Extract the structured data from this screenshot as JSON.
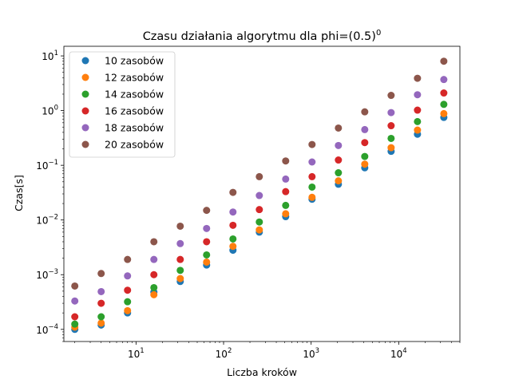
{
  "chart_data": {
    "type": "scatter",
    "title": "Czasu działania algorytmu dla phi=(0.5)",
    "title_superscript": "0",
    "xlabel": "Liczba kroków",
    "ylabel": "Czas[s]",
    "x_scale": "log",
    "y_scale": "log",
    "xlim": [
      1.5,
      50000
    ],
    "ylim": [
      6e-05,
      15
    ],
    "x_ticks": [
      {
        "value": 10,
        "base": "10",
        "exp": "1"
      },
      {
        "value": 100,
        "base": "10",
        "exp": "2"
      },
      {
        "value": 1000,
        "base": "10",
        "exp": "3"
      },
      {
        "value": 10000,
        "base": "10",
        "exp": "4"
      }
    ],
    "y_ticks": [
      {
        "value": 0.0001,
        "base": "10",
        "exp": "−4"
      },
      {
        "value": 0.001,
        "base": "10",
        "exp": "−3"
      },
      {
        "value": 0.01,
        "base": "10",
        "exp": "−2"
      },
      {
        "value": 0.1,
        "base": "10",
        "exp": "−1"
      },
      {
        "value": 1,
        "base": "10",
        "exp": "0"
      },
      {
        "value": 10,
        "base": "10",
        "exp": "1"
      }
    ],
    "grid": false,
    "legend_position": "top-left",
    "x": [
      2,
      4,
      8,
      16,
      32,
      64,
      128,
      256,
      512,
      1024,
      2048,
      4096,
      8192,
      16384,
      32768
    ],
    "series": [
      {
        "name": "10 zasobów",
        "color": "#1f77b4",
        "values": [
          0.0001,
          0.00012,
          0.0002,
          0.00048,
          0.00075,
          0.0015,
          0.0028,
          0.006,
          0.0115,
          0.024,
          0.045,
          0.09,
          0.18,
          0.37,
          0.75
        ]
      },
      {
        "name": "12 zasobów",
        "color": "#ff7f0e",
        "values": [
          0.00011,
          0.00013,
          0.00022,
          0.00043,
          0.00085,
          0.0017,
          0.0033,
          0.0066,
          0.013,
          0.026,
          0.052,
          0.105,
          0.21,
          0.44,
          0.88
        ]
      },
      {
        "name": "14 zasobów",
        "color": "#2ca02c",
        "values": [
          0.000125,
          0.00017,
          0.00032,
          0.00058,
          0.0012,
          0.0023,
          0.0045,
          0.0092,
          0.0185,
          0.04,
          0.073,
          0.145,
          0.31,
          0.63,
          1.3
        ]
      },
      {
        "name": "16 zasobów",
        "color": "#d62728",
        "values": [
          0.00017,
          0.0003,
          0.00052,
          0.001,
          0.0019,
          0.004,
          0.008,
          0.0155,
          0.033,
          0.062,
          0.125,
          0.26,
          0.53,
          1.02,
          2.1
        ]
      },
      {
        "name": "18 zasobów",
        "color": "#9467bd",
        "values": [
          0.00033,
          0.00049,
          0.00095,
          0.0019,
          0.0037,
          0.007,
          0.014,
          0.028,
          0.056,
          0.115,
          0.23,
          0.45,
          0.92,
          1.95,
          3.7
        ]
      },
      {
        "name": "20 zasobów",
        "color": "#8c564b",
        "values": [
          0.00062,
          0.00105,
          0.0019,
          0.004,
          0.0077,
          0.015,
          0.032,
          0.062,
          0.12,
          0.24,
          0.48,
          0.95,
          1.9,
          3.9,
          8.0
        ]
      }
    ]
  }
}
